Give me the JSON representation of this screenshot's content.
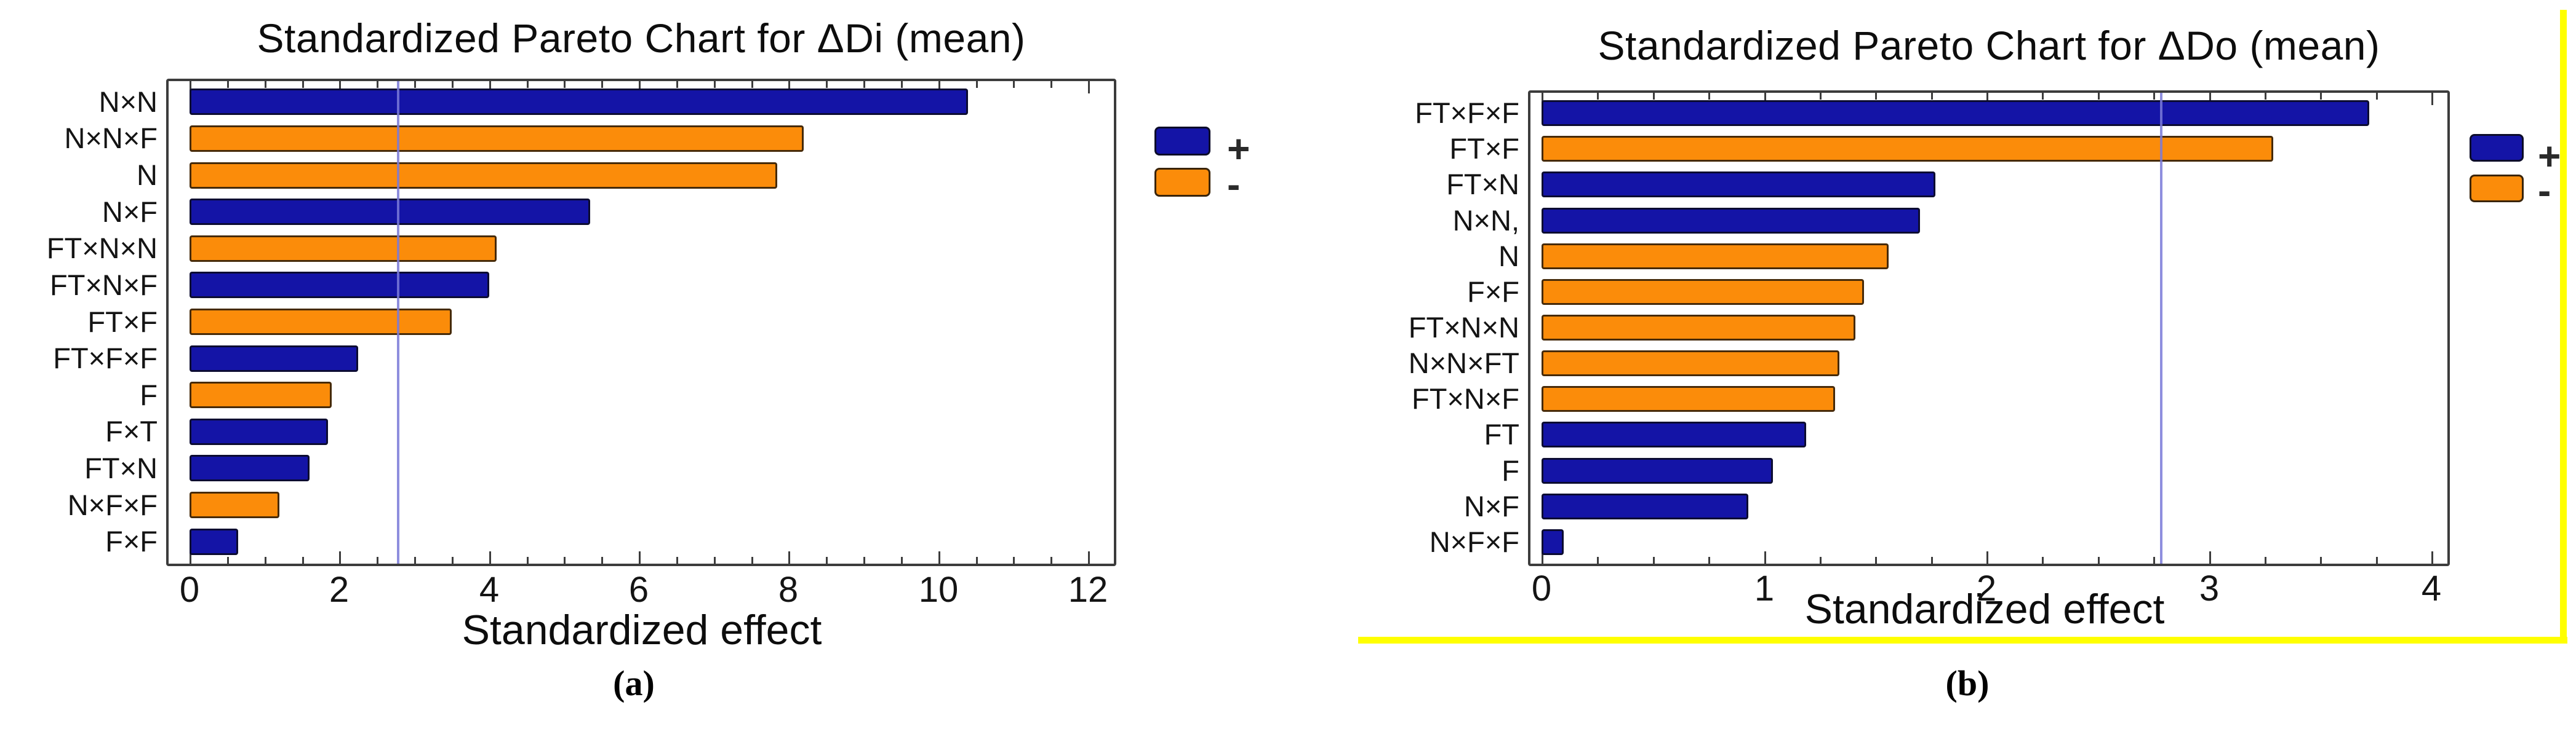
{
  "figure": {
    "captions": [
      "(a)",
      "(b)"
    ],
    "highlight_color": "#FFFF00"
  },
  "chart_data": [
    {
      "type": "bar",
      "orientation": "horizontal",
      "title": "Standardized Pareto Chart for ΔDi (mean)",
      "xlabel": "Standardized effect",
      "categories": [
        "N×N",
        "N×N×F",
        "N",
        "N×F",
        "FT×N×N",
        "FT×N×F",
        "FT×F",
        "FT×F×F",
        "F",
        "F×T",
        "FT×N",
        "N×F×F",
        "F×F"
      ],
      "values": [
        10.4,
        8.2,
        7.85,
        5.35,
        4.1,
        4.0,
        3.5,
        2.25,
        1.9,
        1.85,
        1.6,
        1.2,
        0.65
      ],
      "signs": [
        "+",
        "-",
        "-",
        "+",
        "-",
        "+",
        "-",
        "+",
        "-",
        "+",
        "+",
        "-",
        "+"
      ],
      "xlim": [
        0,
        12
      ],
      "xticks": [
        0,
        2,
        4,
        6,
        8,
        10,
        12
      ],
      "minor_tick_step": 0.5,
      "reference_line": 2.77,
      "grid": false,
      "legend_position": "right",
      "legend": {
        "plus": "+",
        "minus": "-"
      },
      "colors": {
        "plus": "#1414A6",
        "minus": "#FB8C0A",
        "reference": "#7A7AD8"
      }
    },
    {
      "type": "bar",
      "orientation": "horizontal",
      "title": "Standardized Pareto Chart for ΔDo (mean)",
      "xlabel": "Standardized effect",
      "categories": [
        "FT×F×F",
        "FT×F",
        "FT×N",
        "N×N,",
        "N",
        "F×F",
        "FT×N×N",
        "N×N×FT",
        "FT×N×F",
        "FT",
        "F",
        "N×F",
        "N×F×F"
      ],
      "values": [
        3.72,
        3.29,
        1.77,
        1.7,
        1.56,
        1.45,
        1.41,
        1.34,
        1.32,
        1.19,
        1.04,
        0.93,
        0.1
      ],
      "signs": [
        "+",
        "-",
        "+",
        "+",
        "-",
        "-",
        "-",
        "-",
        "-",
        "+",
        "+",
        "+",
        "+"
      ],
      "xlim": [
        0,
        4
      ],
      "xticks": [
        0,
        1,
        2,
        3,
        4
      ],
      "minor_tick_step": 0.25,
      "reference_line": 2.78,
      "grid": false,
      "legend_position": "right",
      "legend": {
        "plus": "+",
        "minus": "-"
      },
      "colors": {
        "plus": "#1414A6",
        "minus": "#FB8C0A",
        "reference": "#7A7AD8"
      }
    }
  ]
}
